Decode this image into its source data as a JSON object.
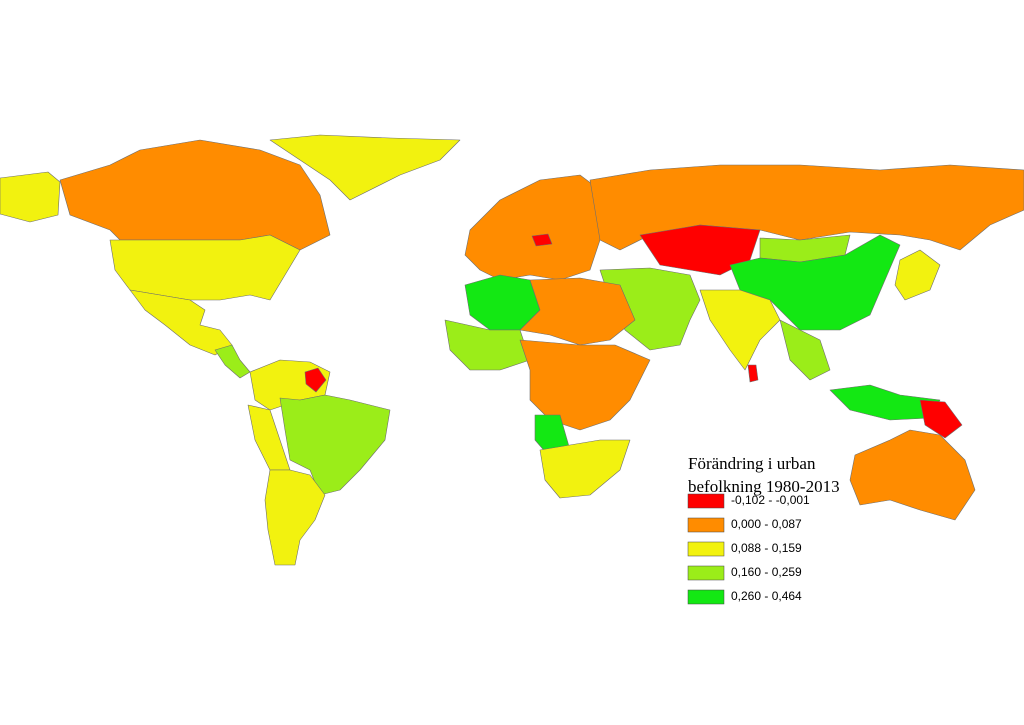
{
  "legend": {
    "title": [
      "Förändring i urban",
      "befolkning 1980-2013"
    ],
    "classes": [
      {
        "label": "-0,102 - -0,001",
        "color": "#ff0000"
      },
      {
        "label": "0,000 - 0,087",
        "color": "#ff8c00"
      },
      {
        "label": "0,088 - 0,159",
        "color": "#f2f20f"
      },
      {
        "label": "0,160 - 0,259",
        "color": "#9bed19"
      },
      {
        "label": "0,260 - 0,464",
        "color": "#13e813"
      }
    ]
  }
}
